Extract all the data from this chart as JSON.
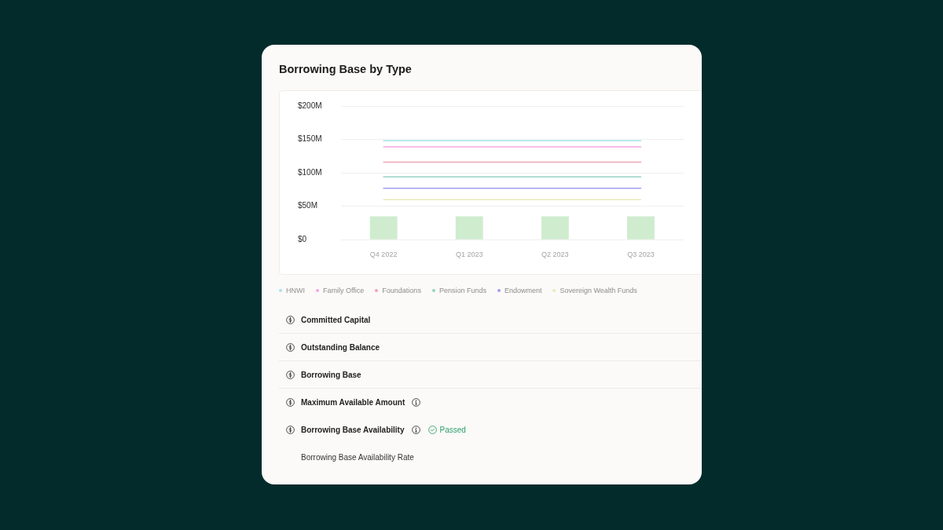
{
  "chart_data": [
    {
      "type": "line",
      "title": "Borrowing Base by Type",
      "categories": [
        "Q4 2022",
        "Q1 2023",
        "Q2 2023",
        "Q3 2023"
      ],
      "series": [
        {
          "name": "HNWI",
          "color": "#a6e3ea",
          "values": [
            148,
            148,
            148,
            148
          ]
        },
        {
          "name": "Family Office",
          "color": "#f2a7e6",
          "values": [
            139,
            139,
            139,
            139
          ]
        },
        {
          "name": "Foundations",
          "color": "#f0a3b4",
          "values": [
            116,
            116,
            116,
            116
          ]
        },
        {
          "name": "Pension Funds",
          "color": "#97d2c3",
          "values": [
            94,
            94,
            94,
            94
          ]
        },
        {
          "name": "Endowment",
          "color": "#a29df0",
          "values": [
            77,
            77,
            77,
            77
          ]
        },
        {
          "name": "Sovereign Wealth Funds",
          "color": "#e9eab9",
          "values": [
            60,
            60,
            60,
            60
          ]
        },
        {
          "type": "bar",
          "color": "#cfeccf",
          "values": [
            35,
            35,
            35,
            35
          ]
        }
      ],
      "ylim": [
        0,
        200
      ],
      "yticks": [
        {
          "value": 0,
          "label": "$0"
        },
        {
          "value": 50,
          "label": "$50M"
        },
        {
          "value": 100,
          "label": "$100M"
        },
        {
          "value": 150,
          "label": "$150M"
        },
        {
          "value": 200,
          "label": "$200M"
        }
      ],
      "grid": "y",
      "legend": "bottom left",
      "marker": "none"
    },
    {
      "type": "other",
      "annotations": [
        "Committed Capital",
        "Outstanding Balance",
        "Borrowing Base",
        "Maximum Available Amount",
        "Borrowing Base Availability",
        "Passed",
        "Borrowing Base Availability Rate"
      ]
    }
  ]
}
